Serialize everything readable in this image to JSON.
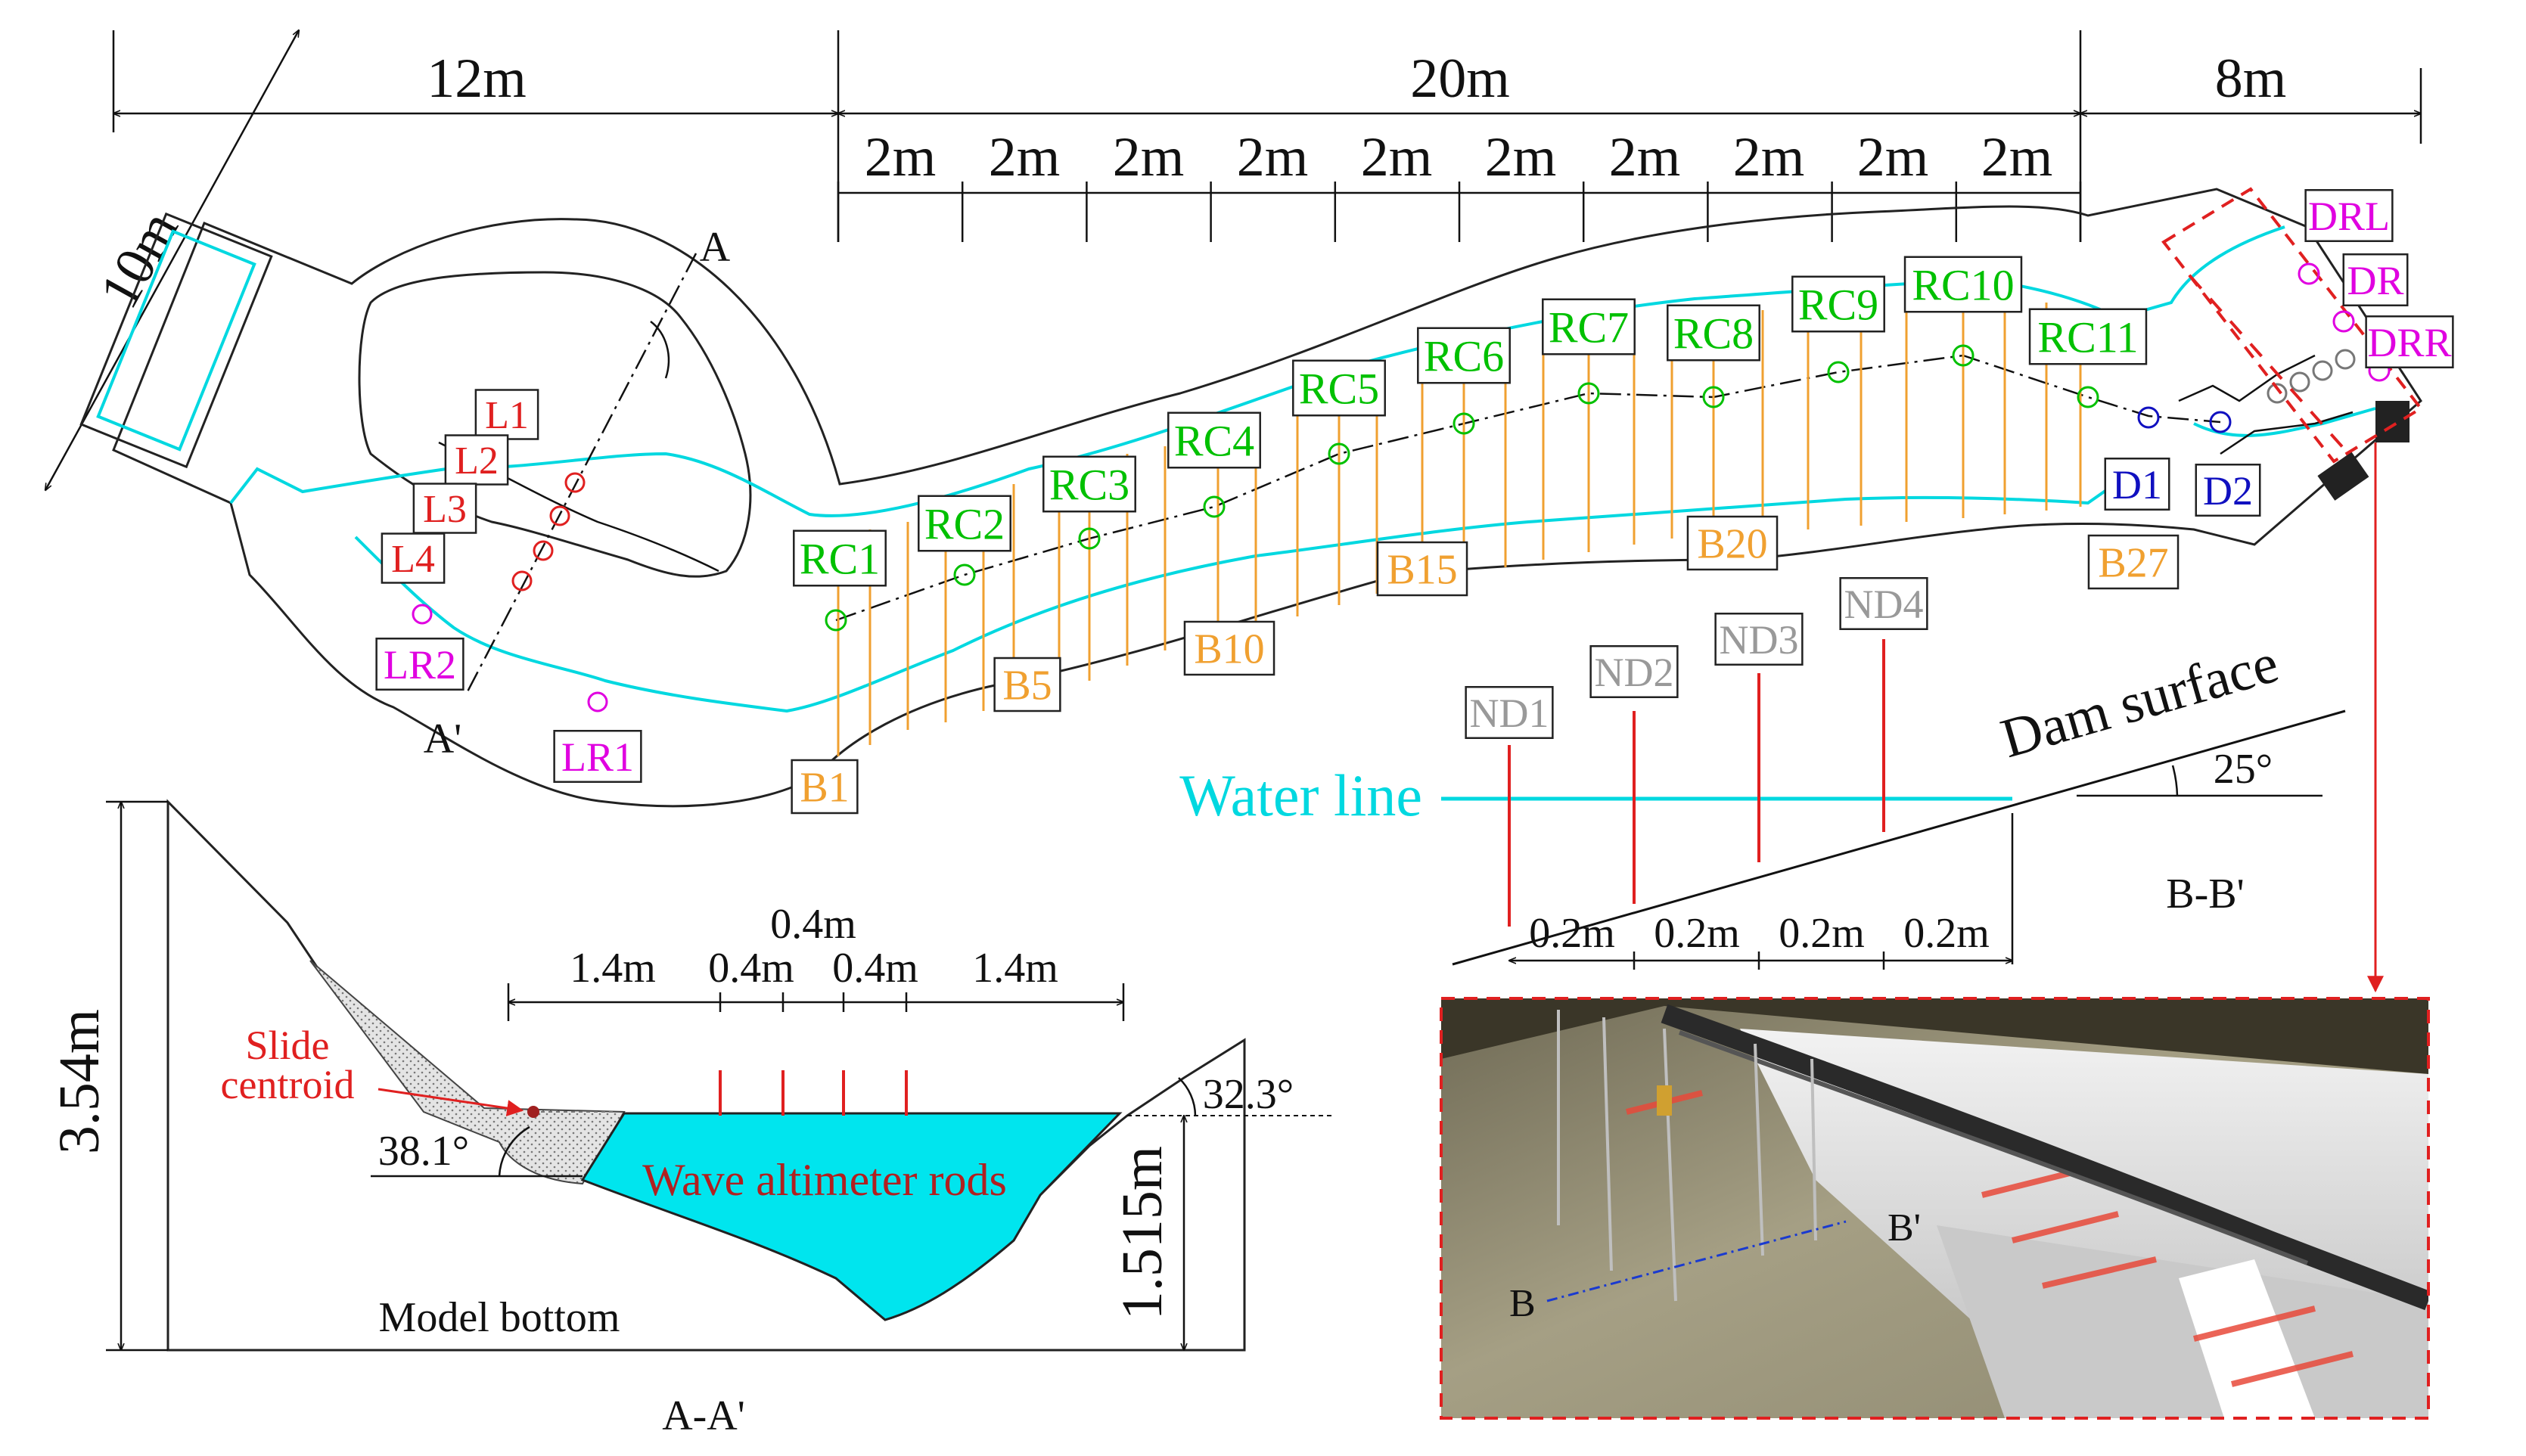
{
  "colors": {
    "outline": "#222222",
    "water": "#00d8e0",
    "rc_marker": "#00c000",
    "l_marker": "#e02020",
    "lr_marker": "#e000e0",
    "d_marker": "#1010c0",
    "b_label": "#f0a030",
    "nd_label": "#999999",
    "dr_label": "#e000e0",
    "water_fill": "#00e5ee"
  },
  "plan_view": {
    "dims": {
      "left": "12m",
      "middle": "20m",
      "right": "8m",
      "width": "10m",
      "sub": [
        "2m",
        "2m",
        "2m",
        "2m",
        "2m",
        "2m",
        "2m",
        "2m",
        "2m",
        "2m"
      ]
    },
    "section_marks": {
      "a": "A",
      "a_prime": "A'"
    },
    "rc_labels": [
      "RC1",
      "RC2",
      "RC3",
      "RC4",
      "RC5",
      "RC6",
      "RC7",
      "RC8",
      "RC9",
      "RC10",
      "RC11"
    ],
    "l_labels": [
      "L1",
      "L2",
      "L3",
      "L4"
    ],
    "lr_labels": [
      "LR1",
      "LR2"
    ],
    "b_labels": [
      "B1",
      "B5",
      "B10",
      "B15",
      "B20",
      "B27"
    ],
    "d_labels": [
      "D1",
      "D2"
    ],
    "dr_labels": [
      "DRL",
      "DR",
      "DRR"
    ]
  },
  "section_bb": {
    "nd_labels": [
      "ND1",
      "ND2",
      "ND3",
      "ND4"
    ],
    "water_line": "Water line",
    "dam_surface": "Dam surface",
    "angle": "25°",
    "spacing": [
      "0.2m",
      "0.2m",
      "0.2m",
      "0.2m"
    ],
    "title": "B-B'"
  },
  "section_aa": {
    "height": "3.54m",
    "depth": "1.515m",
    "dims_bottom": [
      "1.4m",
      "0.4m",
      "0.4m",
      "1.4m"
    ],
    "dim_top": "0.4m",
    "slide_centroid_line1": "Slide",
    "slide_centroid_line2": "centroid",
    "angle_left": "38.1°",
    "angle_right": "32.3°",
    "rods_label": "Wave altimeter rods",
    "bottom_label": "Model bottom",
    "title": "A-A'"
  },
  "photo": {
    "label_b": "B",
    "label_b_prime": "B'"
  }
}
